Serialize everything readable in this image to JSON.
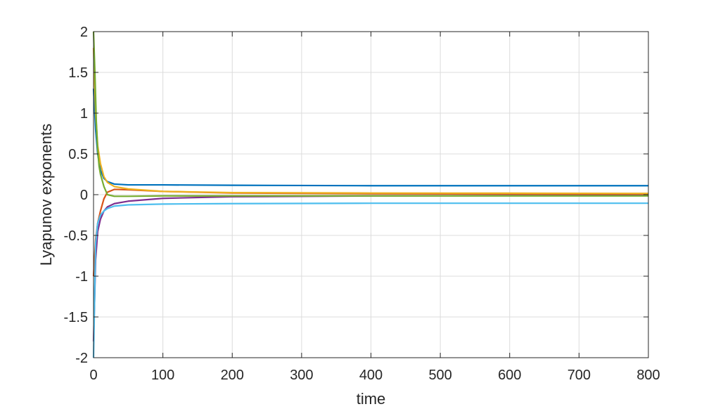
{
  "chart_data": {
    "type": "line",
    "xlabel": "time",
    "ylabel": "Lyapunov exponents",
    "xlim": [
      0,
      800
    ],
    "ylim": [
      -2,
      2
    ],
    "xticks": [
      "0",
      "100",
      "200",
      "300",
      "400",
      "500",
      "600",
      "700",
      "800"
    ],
    "yticks": [
      "2",
      "1.5",
      "1",
      "0.5",
      "0",
      "-0.5",
      "-1",
      "-1.5",
      "-2"
    ],
    "grid": true,
    "legend": "none",
    "series": [
      {
        "color": "#0072BD",
        "x": [
          0,
          3,
          6,
          10,
          15,
          20,
          30,
          50,
          100,
          200,
          400,
          600,
          800
        ],
        "y": [
          1.3,
          0.8,
          0.5,
          0.3,
          0.2,
          0.16,
          0.13,
          0.12,
          0.12,
          0.115,
          0.11,
          0.11,
          0.11
        ]
      },
      {
        "color": "#D95319",
        "x": [
          0,
          3,
          6,
          10,
          15,
          20,
          30,
          50,
          100,
          200,
          400,
          600,
          800
        ],
        "y": [
          -1.0,
          -0.55,
          -0.35,
          -0.2,
          -0.05,
          0.03,
          0.065,
          0.06,
          0.04,
          0.02,
          0.012,
          0.008,
          0.005
        ]
      },
      {
        "color": "#EDB120",
        "x": [
          0,
          3,
          6,
          10,
          15,
          20,
          30,
          50,
          100,
          200,
          400,
          600,
          800
        ],
        "y": [
          1.8,
          1.0,
          0.6,
          0.38,
          0.22,
          0.15,
          0.1,
          0.07,
          0.04,
          0.025,
          0.02,
          0.018,
          0.015
        ]
      },
      {
        "color": "#7E2F8E",
        "x": [
          0,
          3,
          6,
          10,
          15,
          20,
          30,
          50,
          100,
          200,
          400,
          600,
          800
        ],
        "y": [
          -1.8,
          -0.8,
          -0.45,
          -0.3,
          -0.2,
          -0.15,
          -0.11,
          -0.08,
          -0.045,
          -0.025,
          -0.015,
          -0.012,
          -0.01
        ]
      },
      {
        "color": "#77AC30",
        "x": [
          0,
          2,
          4,
          6,
          8,
          10,
          15,
          20,
          30,
          50,
          100,
          200,
          400,
          600,
          800
        ],
        "y": [
          2.0,
          1.5,
          0.9,
          0.55,
          0.35,
          0.25,
          0.1,
          0.0,
          -0.02,
          -0.02,
          -0.015,
          -0.015,
          -0.015,
          -0.015,
          -0.015
        ]
      },
      {
        "color": "#4DBEEE",
        "x": [
          0,
          3,
          6,
          10,
          15,
          20,
          30,
          50,
          100,
          200,
          400,
          600,
          800
        ],
        "y": [
          -2.0,
          -0.6,
          -0.35,
          -0.25,
          -0.2,
          -0.17,
          -0.14,
          -0.125,
          -0.115,
          -0.11,
          -0.105,
          -0.105,
          -0.105
        ]
      }
    ]
  }
}
